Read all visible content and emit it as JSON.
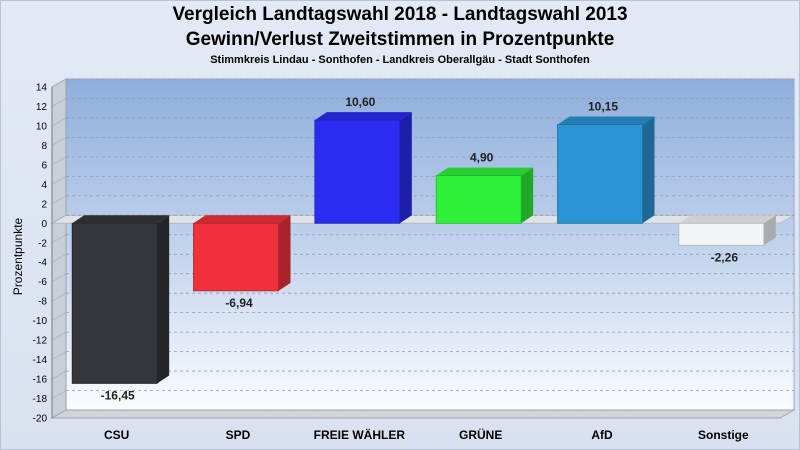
{
  "title": "Vergleich Landtagswahl 2018 - Landtagswahl 2013",
  "subtitle": "Gewinn/Verlust Zweitstimmen in Prozentpunkte",
  "subsubtitle": "Stimmkreis Lindau - Sonthofen - Landkreis Oberallgäu - Stadt Sonthofen",
  "chart_data": {
    "type": "bar",
    "title": "Vergleich Landtagswahl 2018 - Landtagswahl 2013",
    "subtitle": "Gewinn/Verlust Zweitstimmen in Prozentpunkte",
    "xlabel": "",
    "ylabel": "Prozentpunkte",
    "ylim": [
      -20,
      14
    ],
    "yticks": [
      14,
      12,
      10,
      8,
      6,
      4,
      2,
      0,
      -2,
      -4,
      -6,
      -8,
      -10,
      -12,
      -14,
      -16,
      -18,
      -20
    ],
    "grid": true,
    "categories": [
      "CSU",
      "SPD",
      "FREIE WÄHLER",
      "GRÜNE",
      "AfD",
      "Sonstige"
    ],
    "values": [
      -16.45,
      -6.94,
      10.6,
      4.9,
      10.15,
      -2.26
    ],
    "value_labels": [
      "-16,45",
      "-6,94",
      "10,60",
      "4,90",
      "10,15",
      "-2,26"
    ],
    "colors": [
      "#34363c",
      "#f0303a",
      "#2a2cf2",
      "#2ef23a",
      "#2b94d2",
      "#f2f4f8"
    ]
  }
}
